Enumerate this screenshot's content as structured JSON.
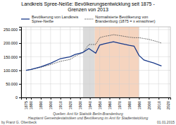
{
  "chart_data": {
    "type": "line",
    "title": "Landkreis Spree-Neiße: Bevölkerungsentwicklung seit 1875 -\nGrenzen von 2013",
    "x": [
      1875,
      1880,
      1890,
      1900,
      1910,
      1920,
      1925,
      1930,
      1933,
      1939,
      1946,
      1950,
      1955,
      1960,
      1964,
      1970,
      1975,
      1980,
      1985,
      1990,
      1995,
      2000,
      2005,
      2010,
      2013
    ],
    "series": [
      {
        "name": "Bevölkerung von Landkreis\nSpree-Neiße",
        "color": "#1a3a8a",
        "line_style": "solid",
        "values": [
          100000,
          103000,
          113000,
          126000,
          143000,
          150000,
          158000,
          163000,
          166000,
          180000,
          163000,
          193000,
          198000,
          202000,
          205000,
          200000,
          196000,
          192000,
          189000,
          155000,
          138000,
          132000,
          127000,
          120000,
          116000
        ]
      },
      {
        "name": "Normalisierte Bevölkerung von\nBrandenburg (1875 = x einwohner)",
        "color": "#555555",
        "line_style": "dotted",
        "values": [
          100000,
          103000,
          111000,
          121000,
          133000,
          140000,
          152000,
          160000,
          165000,
          195000,
          195000,
          220000,
          225000,
          228000,
          231000,
          228000,
          225000,
          222000,
          220000,
          220000,
          217000,
          214000,
          209000,
          204000,
          200000
        ]
      }
    ],
    "xlim": [
      1870,
      2022
    ],
    "ylim": [
      0,
      260000
    ],
    "xticks": [
      1875,
      1880,
      1890,
      1900,
      1910,
      1920,
      1930,
      1940,
      1950,
      1960,
      1970,
      1980,
      1990,
      2000,
      2010,
      2020
    ],
    "yticks": [
      0,
      {
        "value": 50000,
        "label": "50.000"
      },
      {
        "value": 100000,
        "label": "100.000"
      },
      {
        "value": 150000,
        "label": "150.000"
      },
      {
        "value": 200000,
        "label": "200.000"
      },
      {
        "value": 250000,
        "label": "250.000"
      }
    ],
    "regions": [
      {
        "start": 1933,
        "end": 1945,
        "color": "#b0b0b0"
      },
      {
        "start": 1945,
        "end": 1990,
        "color": "#e8a070"
      }
    ],
    "annotations": [
      "Quellen: Amt für Statistik Berlin-Brandenburg",
      "Hauptamt Gemeindestatistiken und Bevölkerung im Amt für Stadtentwicklung",
      "by Franz G. Oltenbeck",
      "01.01.2015"
    ],
    "grid": true,
    "legend": "upper left"
  }
}
